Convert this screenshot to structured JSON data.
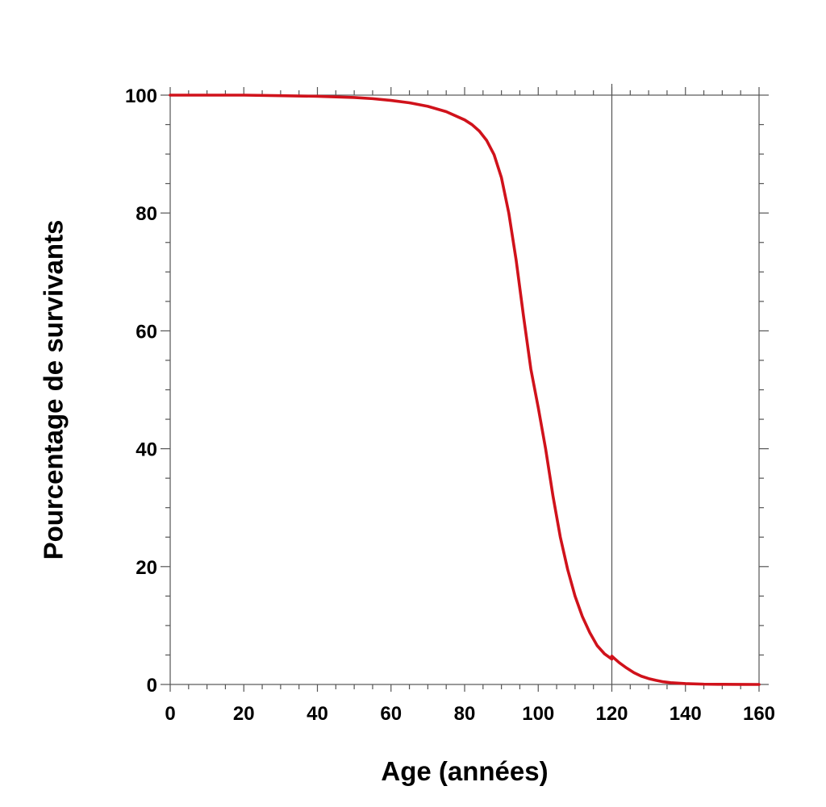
{
  "chart_data": {
    "type": "line",
    "title": "",
    "xlabel": "Age (années)",
    "ylabel": "Pourcentage de survivants",
    "xlim": [
      0,
      160
    ],
    "ylim": [
      0,
      100
    ],
    "x_ticks": [
      "0",
      "20",
      "40",
      "60",
      "80",
      "100",
      "120",
      "140",
      "160"
    ],
    "y_ticks": [
      "0",
      "20",
      "40",
      "60",
      "80",
      "100"
    ],
    "x_minor_step": 5,
    "y_minor_step": 5,
    "grid": false,
    "reference_line_x": 120,
    "line_color": "#d0121b",
    "series": [
      {
        "name": "",
        "segments": [
          {
            "x": [
              0,
              10,
              20,
              30,
              40,
              45,
              50,
              55,
              60,
              65,
              70,
              75,
              80,
              82,
              84,
              86,
              88,
              90,
              92,
              94,
              96,
              98,
              100,
              102,
              104,
              106,
              108,
              110,
              112,
              114,
              116,
              118,
              120
            ],
            "y": [
              100,
              100,
              100,
              99.9,
              99.8,
              99.7,
              99.6,
              99.4,
              99.1,
              98.7,
              98.1,
              97.2,
              95.8,
              95.0,
              93.9,
              92.3,
              89.9,
              86.0,
              80.0,
              72.0,
              62.5,
              53.5,
              47.0,
              40.0,
              32.0,
              25.0,
              19.5,
              15.0,
              11.5,
              8.8,
              6.6,
              5.2,
              4.3
            ]
          },
          {
            "x": [
              120,
              122,
              124,
              126,
              128,
              130,
              132,
              134,
              136,
              140,
              145,
              150,
              155,
              160
            ],
            "y": [
              4.8,
              3.7,
              2.8,
              2.0,
              1.4,
              1.0,
              0.7,
              0.45,
              0.3,
              0.15,
              0.05,
              0.02,
              0.01,
              0
            ]
          }
        ]
      }
    ]
  }
}
